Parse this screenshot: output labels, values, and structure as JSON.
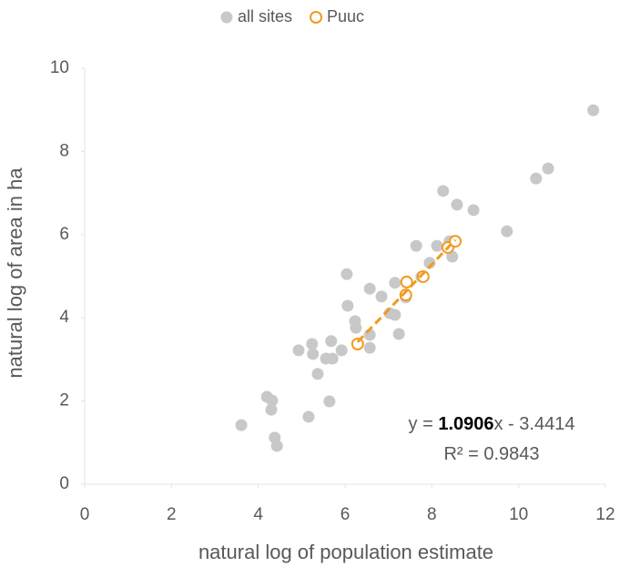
{
  "chart_data": {
    "type": "scatter",
    "xlabel": "natural log of population estimate",
    "ylabel": "natural log of area in ha",
    "xlim": [
      0,
      12
    ],
    "xticks": [
      0,
      2,
      4,
      6,
      8,
      10,
      12
    ],
    "ylim": [
      0,
      10
    ],
    "yticks": [
      0,
      2,
      4,
      6,
      8,
      10
    ],
    "grid": false,
    "legend": "top",
    "series": [
      {
        "name": "all sites",
        "color": "#c8c8c8",
        "marker": "filled",
        "x": [
          3.61,
          4.2,
          4.32,
          4.3,
          4.38,
          4.43,
          4.93,
          5.24,
          5.26,
          5.16,
          5.37,
          5.56,
          5.68,
          5.71,
          5.64,
          5.92,
          6.04,
          6.06,
          6.23,
          6.25,
          6.57,
          6.57,
          6.57,
          6.84,
          7.03,
          7.15,
          7.15,
          7.24,
          7.64,
          7.4,
          7.76,
          7.95,
          8.12,
          8.26,
          8.41,
          8.47,
          8.58,
          8.96,
          9.73,
          10.4,
          10.68,
          11.72
        ],
        "values": [
          1.42,
          2.1,
          2.01,
          1.79,
          1.12,
          0.92,
          3.22,
          3.37,
          3.13,
          1.62,
          2.65,
          3.02,
          3.44,
          3.02,
          1.99,
          3.22,
          5.05,
          4.29,
          3.92,
          3.76,
          4.7,
          3.59,
          3.28,
          4.51,
          4.11,
          4.07,
          4.84,
          3.61,
          5.73,
          4.49,
          4.99,
          5.32,
          5.73,
          7.05,
          5.84,
          5.47,
          6.72,
          6.59,
          6.08,
          7.35,
          7.59,
          8.99
        ]
      },
      {
        "name": "Puuc",
        "color": "#f29a1f",
        "marker": "open",
        "x": [
          6.29,
          7.4,
          7.42,
          7.8,
          8.37,
          8.54
        ],
        "values": [
          3.37,
          4.55,
          4.86,
          4.99,
          5.69,
          5.84
        ]
      }
    ],
    "trendline": {
      "series": 1,
      "color": "#f29a1f",
      "prefix": "y = ",
      "slope": 1.0906,
      "middle": "x - ",
      "intercept": 3.4414,
      "r2_prefix": "R² = ",
      "r2": 0.9843
    }
  }
}
